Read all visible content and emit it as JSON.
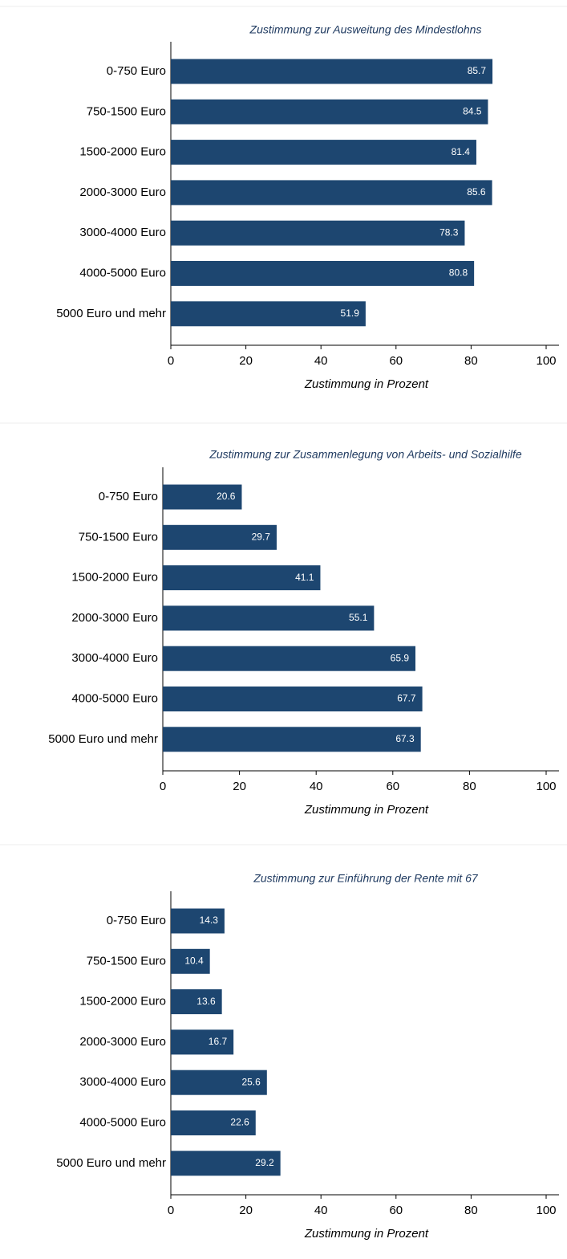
{
  "chart_data": [
    {
      "type": "bar",
      "orientation": "horizontal",
      "title": "Zustimmung zur Ausweitung des Mindestlohns",
      "categories": [
        "0-750 Euro",
        "750-1500 Euro",
        "1500-2000 Euro",
        "2000-3000 Euro",
        "3000-4000 Euro",
        "4000-5000 Euro",
        "5000 Euro und mehr"
      ],
      "values": [
        85.7,
        84.5,
        81.4,
        85.6,
        78.3,
        80.8,
        51.9
      ],
      "color": "#1d4670",
      "xlim": [
        0,
        100
      ],
      "xticks": [
        0,
        20,
        40,
        60,
        80,
        100
      ],
      "xlabel": "Zustimmung in Prozent",
      "grid": false
    },
    {
      "type": "bar",
      "orientation": "horizontal",
      "title": "Zustimmung zur Zusammenlegung von Arbeits- und Sozialhilfe",
      "categories": [
        "0-750 Euro",
        "750-1500 Euro",
        "1500-2000 Euro",
        "2000-3000 Euro",
        "3000-4000 Euro",
        "4000-5000 Euro",
        "5000 Euro und mehr"
      ],
      "values": [
        20.6,
        29.7,
        41.1,
        55.1,
        65.9,
        67.7,
        67.3
      ],
      "color": "#1d4670",
      "xlim": [
        0,
        100
      ],
      "xticks": [
        0,
        20,
        40,
        60,
        80,
        100
      ],
      "xlabel": "Zustimmung in Prozent",
      "grid": false
    },
    {
      "type": "bar",
      "orientation": "horizontal",
      "title": "Zustimmung zur Einführung der Rente mit 67",
      "categories": [
        "0-750 Euro",
        "750-1500 Euro",
        "1500-2000 Euro",
        "2000-3000 Euro",
        "3000-4000 Euro",
        "4000-5000 Euro",
        "5000 Euro und mehr"
      ],
      "values": [
        14.3,
        10.4,
        13.6,
        16.7,
        25.6,
        22.6,
        29.2
      ],
      "color": "#1d4670",
      "xlim": [
        0,
        100
      ],
      "xticks": [
        0,
        20,
        40,
        60,
        80,
        100
      ],
      "xlabel": "Zustimmung in Prozent",
      "grid": false
    }
  ]
}
